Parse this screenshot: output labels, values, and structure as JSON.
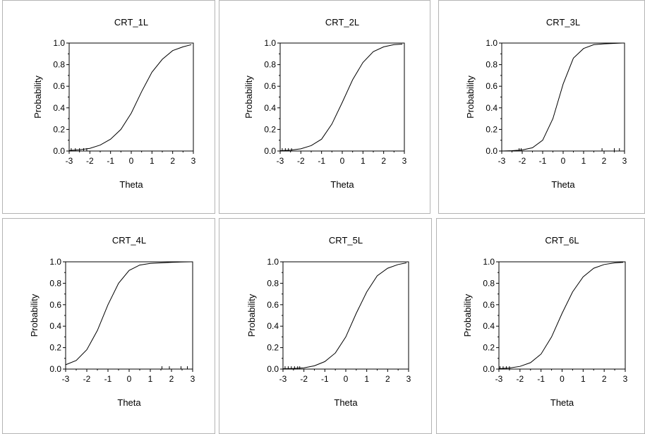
{
  "chart_data": [
    {
      "type": "line",
      "title": "CRT_1L",
      "xlabel": "Theta",
      "ylabel": "Probability",
      "xlim": [
        -3,
        3
      ],
      "ylim": [
        0,
        1
      ],
      "xticks": [
        "-3",
        "-2",
        "-1",
        "0",
        "1",
        "2",
        "3"
      ],
      "yticks": [
        "0.0",
        "0.2",
        "0.4",
        "0.6",
        "0.8",
        "1.0"
      ],
      "series": [
        {
          "x": [
            -3.0,
            -2.5,
            -2.0,
            -1.5,
            -1.0,
            -0.5,
            0.0,
            0.5,
            1.0,
            1.5,
            2.0,
            2.5,
            2.9
          ],
          "y": [
            0.005,
            0.012,
            0.025,
            0.055,
            0.11,
            0.2,
            0.35,
            0.55,
            0.73,
            0.85,
            0.93,
            0.965,
            0.985
          ]
        }
      ],
      "rug": [
        -2.9,
        -2.7,
        -2.5,
        -2.3,
        -2.15
      ]
    },
    {
      "type": "line",
      "title": "CRT_2L",
      "xlabel": "Theta",
      "ylabel": "Probability",
      "xlim": [
        -3,
        3
      ],
      "ylim": [
        0,
        1
      ],
      "xticks": [
        "-3",
        "-2",
        "-1",
        "0",
        "1",
        "2",
        "3"
      ],
      "yticks": [
        "0.0",
        "0.2",
        "0.4",
        "0.6",
        "0.8",
        "1.0"
      ],
      "series": [
        {
          "x": [
            -3.0,
            -2.5,
            -2.0,
            -1.5,
            -1.0,
            -0.5,
            0.0,
            0.5,
            1.0,
            1.5,
            2.0,
            2.5,
            2.9
          ],
          "y": [
            0.003,
            0.008,
            0.02,
            0.05,
            0.11,
            0.25,
            0.45,
            0.66,
            0.82,
            0.92,
            0.965,
            0.985,
            0.99
          ]
        }
      ],
      "rug": [
        -2.9,
        -2.75,
        -2.6,
        -2.45
      ]
    },
    {
      "type": "line",
      "title": "CRT_3L",
      "xlabel": "Theta",
      "ylabel": "Probability",
      "xlim": [
        -3,
        3
      ],
      "ylim": [
        0,
        1
      ],
      "xticks": [
        "-3",
        "-2",
        "-1",
        "0",
        "1",
        "2",
        "3"
      ],
      "yticks": [
        "0.0",
        "0.2",
        "0.4",
        "0.6",
        "0.8",
        "1.0"
      ],
      "series": [
        {
          "x": [
            -3.0,
            -2.5,
            -2.0,
            -1.5,
            -1.0,
            -0.5,
            0.0,
            0.5,
            1.0,
            1.5,
            2.0,
            2.5,
            2.9
          ],
          "y": [
            0.0,
            0.003,
            0.01,
            0.03,
            0.1,
            0.3,
            0.62,
            0.86,
            0.95,
            0.985,
            0.993,
            0.997,
            1.0
          ]
        }
      ],
      "rug": [
        -2.15,
        -2.05,
        1.9,
        2.5,
        2.75
      ]
    },
    {
      "type": "line",
      "title": "CRT_4L",
      "xlabel": "Theta",
      "ylabel": "Probability",
      "xlim": [
        -3,
        3
      ],
      "ylim": [
        0,
        1
      ],
      "xticks": [
        "-3",
        "-2",
        "-1",
        "0",
        "1",
        "2",
        "3"
      ],
      "yticks": [
        "0.0",
        "0.2",
        "0.4",
        "0.6",
        "0.8",
        "1.0"
      ],
      "series": [
        {
          "x": [
            -3.0,
            -2.5,
            -2.0,
            -1.5,
            -1.0,
            -0.5,
            0.0,
            0.5,
            1.0,
            1.5,
            2.0,
            2.5,
            2.9
          ],
          "y": [
            0.04,
            0.08,
            0.18,
            0.36,
            0.6,
            0.8,
            0.92,
            0.97,
            0.985,
            0.99,
            0.995,
            0.998,
            1.0
          ]
        }
      ],
      "rug": [
        1.55,
        1.9,
        2.45,
        2.75
      ]
    },
    {
      "type": "line",
      "title": "CRT_5L",
      "xlabel": "Theta",
      "ylabel": "Probability",
      "xlim": [
        -3,
        3
      ],
      "ylim": [
        0,
        1
      ],
      "xticks": [
        "-3",
        "-2",
        "-1",
        "0",
        "1",
        "2",
        "3"
      ],
      "yticks": [
        "0.0",
        "0.2",
        "0.4",
        "0.6",
        "0.8",
        "1.0"
      ],
      "series": [
        {
          "x": [
            -3.0,
            -2.5,
            -2.0,
            -1.5,
            -1.0,
            -0.5,
            0.0,
            0.5,
            1.0,
            1.5,
            2.0,
            2.5,
            2.9
          ],
          "y": [
            0.003,
            0.006,
            0.012,
            0.03,
            0.07,
            0.15,
            0.3,
            0.52,
            0.72,
            0.87,
            0.94,
            0.975,
            0.99
          ]
        }
      ],
      "rug": [
        -2.9,
        -2.75,
        -2.6,
        -2.45,
        -2.3,
        -2.2
      ]
    },
    {
      "type": "line",
      "title": "CRT_6L",
      "xlabel": "Theta",
      "ylabel": "Probability",
      "xlim": [
        -3,
        3
      ],
      "ylim": [
        0,
        1
      ],
      "xticks": [
        "-3",
        "-2",
        "-1",
        "0",
        "1",
        "2",
        "3"
      ],
      "yticks": [
        "0.0",
        "0.2",
        "0.4",
        "0.6",
        "0.8",
        "1.0"
      ],
      "series": [
        {
          "x": [
            -3.0,
            -2.5,
            -2.0,
            -1.5,
            -1.0,
            -0.5,
            0.0,
            0.5,
            1.0,
            1.5,
            2.0,
            2.5,
            2.9
          ],
          "y": [
            0.004,
            0.01,
            0.025,
            0.06,
            0.14,
            0.3,
            0.52,
            0.72,
            0.86,
            0.94,
            0.975,
            0.99,
            0.995
          ]
        }
      ],
      "rug": [
        -2.95,
        -2.8,
        -2.65,
        -2.5
      ]
    }
  ]
}
